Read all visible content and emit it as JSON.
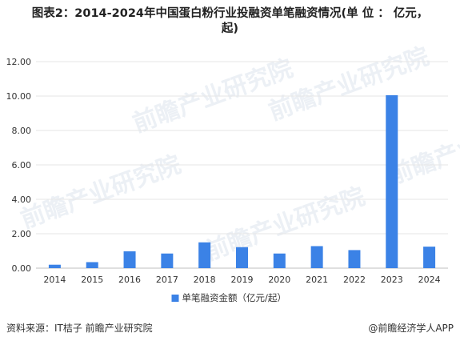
{
  "title": "图表2：2014-2024年中国蛋白粉行业投融资单笔融资情况(单 位 ： 亿元，起)",
  "title_line1": "图表2：2014-2024年中国蛋白粉行业投融资单笔融资情况(单 位 ： 亿元，",
  "title_line2": "起)",
  "watermark": "前瞻产业研究院",
  "footer": {
    "source": "资料来源：IT桔子 前瞻产业研究院",
    "brand": "@前瞻经济学人APP"
  },
  "colors": {
    "bar": "#3b82e6",
    "grid": "#e6e6e6",
    "text": "#333333"
  },
  "chart_data": {
    "type": "bar",
    "categories": [
      "2014",
      "2015",
      "2016",
      "2017",
      "2018",
      "2019",
      "2020",
      "2021",
      "2022",
      "2023",
      "2024"
    ],
    "series": [
      {
        "name": "单笔融资金额（亿元/起）",
        "values": [
          0.2,
          0.35,
          0.98,
          0.85,
          1.5,
          1.22,
          0.85,
          1.28,
          1.05,
          10.05,
          1.25
        ]
      }
    ],
    "ylim": [
      0,
      12
    ],
    "yticks": [
      "0.00",
      "2.00",
      "4.00",
      "6.00",
      "8.00",
      "10.00",
      "12.00"
    ],
    "grid": true,
    "legend": "bottom"
  }
}
